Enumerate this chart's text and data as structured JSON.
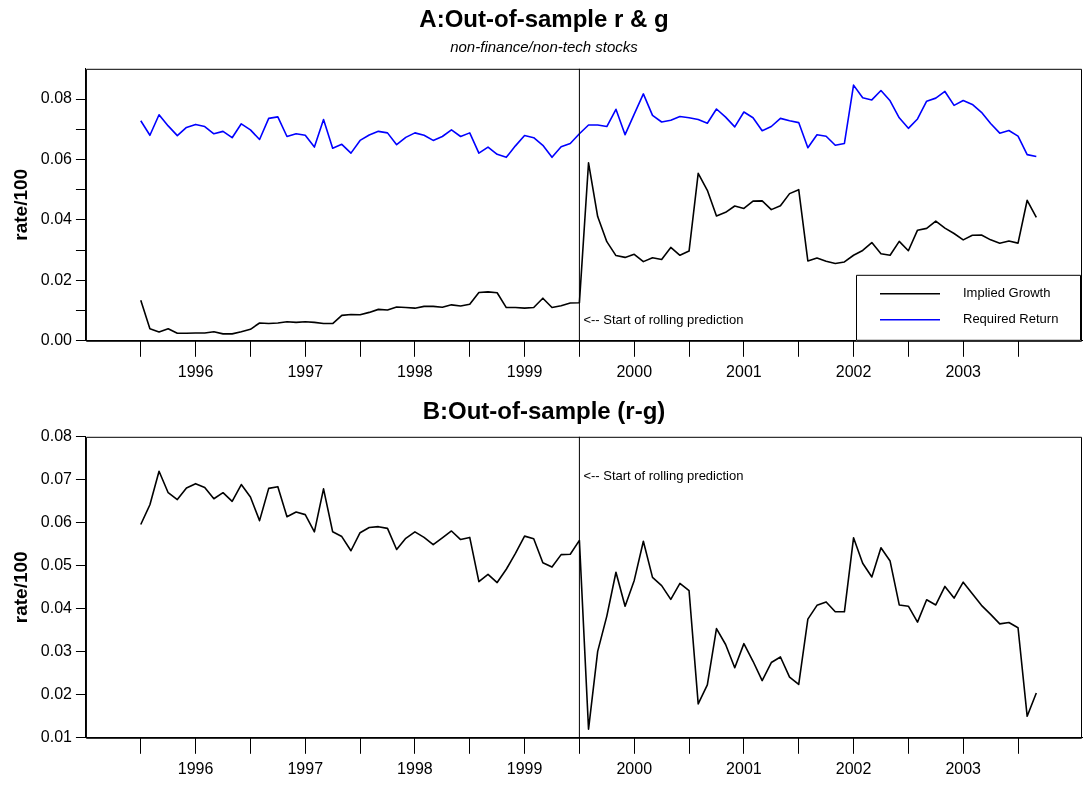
{
  "chart_data": [
    {
      "type": "line",
      "title": "A:Out-of-sample r & g",
      "subtitle": "non-finance/non-tech stocks",
      "ylabel": "rate/100",
      "x": [
        "1996-01",
        "1996-02",
        "1996-03",
        "1996-04",
        "1996-05",
        "1996-06",
        "1996-07",
        "1996-08",
        "1996-09",
        "1996-10",
        "1996-11",
        "1996-12",
        "1997-01",
        "1997-02",
        "1997-03",
        "1997-04",
        "1997-05",
        "1997-06",
        "1997-07",
        "1997-08",
        "1997-09",
        "1997-10",
        "1997-11",
        "1997-12",
        "1998-01",
        "1998-02",
        "1998-03",
        "1998-04",
        "1998-05",
        "1998-06",
        "1998-07",
        "1998-08",
        "1998-09",
        "1998-10",
        "1998-11",
        "1998-12",
        "1999-01",
        "1999-02",
        "1999-03",
        "1999-04",
        "1999-05",
        "1999-06",
        "1999-07",
        "1999-08",
        "1999-09",
        "1999-10",
        "1999-11",
        "1999-12",
        "2000-01",
        "2000-02",
        "2000-03",
        "2000-04",
        "2000-05",
        "2000-06",
        "2000-07",
        "2000-08",
        "2000-09",
        "2000-10",
        "2000-11",
        "2000-12",
        "2001-01",
        "2001-02",
        "2001-03",
        "2001-04",
        "2001-05",
        "2001-06",
        "2001-07",
        "2001-08",
        "2001-09",
        "2001-10",
        "2001-11",
        "2001-12",
        "2002-01",
        "2002-02",
        "2002-03",
        "2002-04",
        "2002-05",
        "2002-06",
        "2002-07",
        "2002-08",
        "2002-09",
        "2002-10",
        "2002-11",
        "2002-12",
        "2003-01",
        "2003-02",
        "2003-03",
        "2003-04",
        "2003-05",
        "2003-06",
        "2003-07",
        "2003-08",
        "2003-09",
        "2003-10",
        "2003-11",
        "2003-12",
        "2004-01",
        "2004-02",
        "2004-03"
      ],
      "series": [
        {
          "name": "Implied Growth",
          "color": "#000000",
          "values": [
            0.0134,
            0.004,
            0.0029,
            0.004,
            0.0025,
            0.0025,
            0.0026,
            0.0026,
            0.003,
            0.0023,
            0.0023,
            0.003,
            0.0038,
            0.0059,
            0.0057,
            0.0059,
            0.0063,
            0.0061,
            0.0063,
            0.0061,
            0.0057,
            0.0057,
            0.0084,
            0.0087,
            0.0086,
            0.0094,
            0.0104,
            0.0102,
            0.0112,
            0.011,
            0.0108,
            0.0114,
            0.0114,
            0.0111,
            0.0119,
            0.0115,
            0.0121,
            0.016,
            0.0162,
            0.0159,
            0.011,
            0.011,
            0.0108,
            0.011,
            0.0141,
            0.011,
            0.0116,
            0.0125,
            0.0126,
            0.0589,
            0.0411,
            0.0328,
            0.0282,
            0.0276,
            0.0286,
            0.0262,
            0.0275,
            0.0269,
            0.0309,
            0.0283,
            0.0297,
            0.0554,
            0.0498,
            0.0413,
            0.0425,
            0.0446,
            0.0438,
            0.0462,
            0.0463,
            0.0434,
            0.0447,
            0.0487,
            0.05,
            0.0264,
            0.0274,
            0.0263,
            0.0256,
            0.0261,
            0.0283,
            0.0299,
            0.0325,
            0.0288,
            0.0283,
            0.0329,
            0.0298,
            0.0366,
            0.0372,
            0.0396,
            0.0373,
            0.0355,
            0.0334,
            0.0349,
            0.035,
            0.0334,
            0.0323,
            0.033,
            0.0323,
            0.0465,
            0.0408
          ]
        },
        {
          "name": "Required Return",
          "color": "#0000ff",
          "values": [
            0.0728,
            0.068,
            0.0748,
            0.0711,
            0.0679,
            0.0706,
            0.0716,
            0.0709,
            0.0685,
            0.0693,
            0.0672,
            0.0718,
            0.0698,
            0.0666,
            0.0736,
            0.0741,
            0.0676,
            0.0685,
            0.068,
            0.0641,
            0.0732,
            0.0637,
            0.065,
            0.0621,
            0.0663,
            0.0681,
            0.0693,
            0.0688,
            0.0649,
            0.0673,
            0.0688,
            0.068,
            0.0663,
            0.0676,
            0.0698,
            0.0676,
            0.0688,
            0.0621,
            0.0641,
            0.0617,
            0.0607,
            0.0645,
            0.0679,
            0.0672,
            0.0647,
            0.0607,
            0.0642,
            0.0653,
            0.0685,
            0.0714,
            0.0714,
            0.0709,
            0.0766,
            0.0682,
            0.075,
            0.0817,
            0.0746,
            0.0724,
            0.073,
            0.0742,
            0.0738,
            0.0732,
            0.072,
            0.0767,
            0.074,
            0.0708,
            0.0757,
            0.0738,
            0.0695,
            0.0709,
            0.0736,
            0.0728,
            0.0722,
            0.0639,
            0.0682,
            0.0677,
            0.0647,
            0.0653,
            0.0846,
            0.0804,
            0.0797,
            0.0828,
            0.0794,
            0.0738,
            0.0703,
            0.0734,
            0.0793,
            0.0803,
            0.0825,
            0.0779,
            0.0795,
            0.0782,
            0.0756,
            0.0719,
            0.0687,
            0.0696,
            0.0677,
            0.0616,
            0.061
          ]
        }
      ],
      "xlim": [
        "1995-07",
        "2004-08"
      ],
      "xticks": [
        {
          "value": "1996-01",
          "label": null
        },
        {
          "value": "1996-07",
          "label": "1996"
        },
        {
          "value": "1997-01",
          "label": null
        },
        {
          "value": "1997-07",
          "label": "1997"
        },
        {
          "value": "1998-01",
          "label": null
        },
        {
          "value": "1998-07",
          "label": "1998"
        },
        {
          "value": "1999-01",
          "label": null
        },
        {
          "value": "1999-07",
          "label": "1999"
        },
        {
          "value": "2000-01",
          "label": null
        },
        {
          "value": "2000-07",
          "label": "2000"
        },
        {
          "value": "2001-01",
          "label": null
        },
        {
          "value": "2001-07",
          "label": "2001"
        },
        {
          "value": "2002-01",
          "label": null
        },
        {
          "value": "2002-07",
          "label": "2002"
        },
        {
          "value": "2003-01",
          "label": null
        },
        {
          "value": "2003-07",
          "label": "2003"
        },
        {
          "value": "2004-01",
          "label": null
        }
      ],
      "ylim": [
        0,
        0.09
      ],
      "yticks": [
        {
          "value": 0,
          "label": "0.00"
        },
        {
          "value": 0.01,
          "label": null
        },
        0.02,
        {
          "value": 0.03,
          "label": null
        },
        0.04,
        {
          "value": 0.05,
          "label": null
        },
        0.06,
        {
          "value": 0.07,
          "label": null
        },
        0.08
      ],
      "ref_lines": [
        {
          "axis": "x",
          "value": "2000-01",
          "label": "<-- Start of rolling prediction",
          "color": "#000000"
        }
      ],
      "legend": "bottom right",
      "grid": false,
      "marker": "none",
      "line_style": "solid"
    },
    {
      "type": "line",
      "title": "B:Out-of-sample (r-g)",
      "ylabel": "rate/100",
      "x": [
        "1996-01",
        "1996-02",
        "1996-03",
        "1996-04",
        "1996-05",
        "1996-06",
        "1996-07",
        "1996-08",
        "1996-09",
        "1996-10",
        "1996-11",
        "1996-12",
        "1997-01",
        "1997-02",
        "1997-03",
        "1997-04",
        "1997-05",
        "1997-06",
        "1997-07",
        "1997-08",
        "1997-09",
        "1997-10",
        "1997-11",
        "1997-12",
        "1998-01",
        "1998-02",
        "1998-03",
        "1998-04",
        "1998-05",
        "1998-06",
        "1998-07",
        "1998-08",
        "1998-09",
        "1998-10",
        "1998-11",
        "1998-12",
        "1999-01",
        "1999-02",
        "1999-03",
        "1999-04",
        "1999-05",
        "1999-06",
        "1999-07",
        "1999-08",
        "1999-09",
        "1999-10",
        "1999-11",
        "1999-12",
        "2000-01",
        "2000-02",
        "2000-03",
        "2000-04",
        "2000-05",
        "2000-06",
        "2000-07",
        "2000-08",
        "2000-09",
        "2000-10",
        "2000-11",
        "2000-12",
        "2001-01",
        "2001-02",
        "2001-03",
        "2001-04",
        "2001-05",
        "2001-06",
        "2001-07",
        "2001-08",
        "2001-09",
        "2001-10",
        "2001-11",
        "2001-12",
        "2002-01",
        "2002-02",
        "2002-03",
        "2002-04",
        "2002-05",
        "2002-06",
        "2002-07",
        "2002-08",
        "2002-09",
        "2002-10",
        "2002-11",
        "2002-12",
        "2003-01",
        "2003-02",
        "2003-03",
        "2003-04",
        "2003-05",
        "2003-06",
        "2003-07",
        "2003-08",
        "2003-09",
        "2003-10",
        "2003-11",
        "2003-12",
        "2004-01",
        "2004-02",
        "2004-03"
      ],
      "series": [
        {
          "color": "#000000",
          "values": [
            0.0596,
            0.0642,
            0.072,
            0.067,
            0.0654,
            0.0681,
            0.0691,
            0.0682,
            0.0656,
            0.067,
            0.065,
            0.0689,
            0.066,
            0.0605,
            0.068,
            0.0684,
            0.0614,
            0.0625,
            0.0619,
            0.0579,
            0.0679,
            0.0579,
            0.0568,
            0.0535,
            0.0577,
            0.0589,
            0.0591,
            0.0587,
            0.0538,
            0.0564,
            0.0579,
            0.0566,
            0.0549,
            0.0565,
            0.0581,
            0.0561,
            0.0566,
            0.0463,
            0.048,
            0.0461,
            0.0492,
            0.0529,
            0.0569,
            0.0563,
            0.0507,
            0.0497,
            0.0526,
            0.0527,
            0.0559,
            0.012,
            0.0301,
            0.0383,
            0.0485,
            0.0406,
            0.0466,
            0.0557,
            0.0473,
            0.0454,
            0.0422,
            0.0459,
            0.0442,
            0.0179,
            0.0223,
            0.0354,
            0.0317,
            0.0263,
            0.0319,
            0.0278,
            0.0233,
            0.0275,
            0.0288,
            0.0241,
            0.0224,
            0.0376,
            0.0408,
            0.0416,
            0.0393,
            0.0393,
            0.0565,
            0.0506,
            0.0474,
            0.0542,
            0.0511,
            0.0409,
            0.0406,
            0.0369,
            0.0421,
            0.0409,
            0.0452,
            0.0425,
            0.0462,
            0.0435,
            0.0408,
            0.0387,
            0.0365,
            0.0368,
            0.0356,
            0.015,
            0.0204
          ]
        }
      ],
      "xlim": [
        "1995-07",
        "2004-08"
      ],
      "xticks": [
        {
          "value": "1996-01",
          "label": null
        },
        {
          "value": "1996-07",
          "label": "1996"
        },
        {
          "value": "1997-01",
          "label": null
        },
        {
          "value": "1997-07",
          "label": "1997"
        },
        {
          "value": "1998-01",
          "label": null
        },
        {
          "value": "1998-07",
          "label": "1998"
        },
        {
          "value": "1999-01",
          "label": null
        },
        {
          "value": "1999-07",
          "label": "1999"
        },
        {
          "value": "2000-01",
          "label": null
        },
        {
          "value": "2000-07",
          "label": "2000"
        },
        {
          "value": "2001-01",
          "label": null
        },
        {
          "value": "2001-07",
          "label": "2001"
        },
        {
          "value": "2002-01",
          "label": null
        },
        {
          "value": "2002-07",
          "label": "2002"
        },
        {
          "value": "2003-01",
          "label": null
        },
        {
          "value": "2003-07",
          "label": "2003"
        },
        {
          "value": "2004-01",
          "label": null
        }
      ],
      "ylim": [
        0.01,
        0.08
      ],
      "yticks": [
        0.01,
        0.02,
        0.03,
        0.04,
        0.05,
        0.06,
        0.07,
        0.08
      ],
      "ref_lines": [
        {
          "axis": "x",
          "value": "2000-01",
          "label": "<-- Start of rolling prediction",
          "color": "#000000"
        }
      ],
      "grid": false,
      "marker": "none",
      "line_style": "solid"
    }
  ]
}
